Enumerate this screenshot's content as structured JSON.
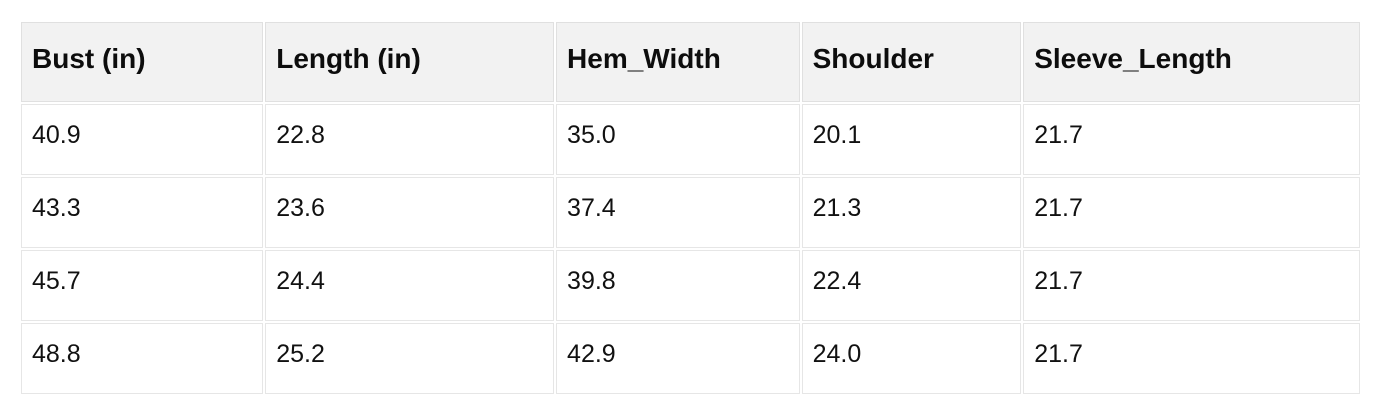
{
  "chart_data": {
    "type": "table",
    "title": "",
    "columns": [
      "Bust (in)",
      "Length (in)",
      "Hem_Width",
      "Shoulder",
      "Sleeve_Length"
    ],
    "rows": [
      [
        "40.9",
        "22.8",
        "35.0",
        "20.1",
        "21.7"
      ],
      [
        "43.3",
        "23.6",
        "37.4",
        "21.3",
        "21.7"
      ],
      [
        "45.7",
        "24.4",
        "39.8",
        "22.4",
        "21.7"
      ],
      [
        "48.8",
        "25.2",
        "42.9",
        "24.0",
        "21.7"
      ]
    ]
  },
  "colors": {
    "header_background": "#f2f2f2",
    "cell_background": "#ffffff",
    "border": "#e3e3e3",
    "text": "#111111",
    "page_background": "#ffffff"
  }
}
